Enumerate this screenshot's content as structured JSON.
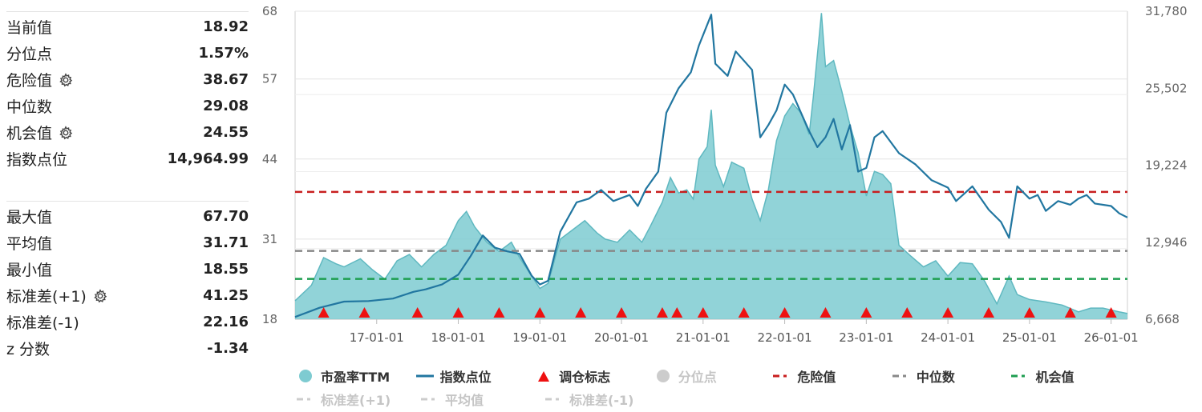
{
  "stats": {
    "group1": [
      {
        "label": "当前值",
        "value": "18.92",
        "gear": false
      },
      {
        "label": "分位点",
        "value": "1.57%",
        "gear": false
      },
      {
        "label": "危险值",
        "value": "38.67",
        "gear": true
      },
      {
        "label": "中位数",
        "value": "29.08",
        "gear": false
      },
      {
        "label": "机会值",
        "value": "24.55",
        "gear": true
      },
      {
        "label": "指数点位",
        "value": "14,964.99",
        "gear": false
      }
    ],
    "group2": [
      {
        "label": "最大值",
        "value": "67.70",
        "gear": false
      },
      {
        "label": "平均值",
        "value": "31.71",
        "gear": false
      },
      {
        "label": "最小值",
        "value": "18.55",
        "gear": false
      },
      {
        "label": "标准差(+1)",
        "value": "41.25",
        "gear": true
      },
      {
        "label": "标准差(-1)",
        "value": "22.16",
        "gear": false
      },
      {
        "label": "z 分数",
        "value": "-1.34",
        "gear": false
      }
    ]
  },
  "legend": [
    {
      "label": "市盈率TTM",
      "symbol": "circle",
      "color": "#7ecbd1",
      "active": true
    },
    {
      "label": "指数点位",
      "symbol": "line",
      "color": "#2176a0",
      "active": true
    },
    {
      "label": "调仓标志",
      "symbol": "triangle",
      "color": "#ee1111",
      "active": true
    },
    {
      "label": "分位点",
      "symbol": "circle",
      "color": "#cccccc",
      "active": false
    },
    {
      "label": "危险值",
      "symbol": "dash",
      "color": "#c81e1e",
      "active": true
    },
    {
      "label": "中位数",
      "symbol": "dash",
      "color": "#888888",
      "active": true
    },
    {
      "label": "机会值",
      "symbol": "dash",
      "color": "#1e9e50",
      "active": true
    },
    {
      "label": "标准差(+1)",
      "symbol": "dash",
      "color": "#cccccc",
      "active": false
    },
    {
      "label": "平均值",
      "symbol": "dash",
      "color": "#cccccc",
      "active": false
    },
    {
      "label": "标准差(-1)",
      "symbol": "dash",
      "color": "#cccccc",
      "active": false
    }
  ],
  "chart_data": {
    "type": "area",
    "left_axis": {
      "min": 18,
      "max": 68,
      "ticks": [
        "18",
        "31",
        "44",
        "57",
        "68"
      ]
    },
    "right_axis": {
      "min": 6668,
      "max": 31780,
      "ticks": [
        "6,668",
        "12,946",
        "19,224",
        "25,502",
        "31,780"
      ]
    },
    "x_range": [
      2016.0,
      2026.2
    ],
    "x_ticks": [
      {
        "x": 2017.0,
        "label": "17-01-01"
      },
      {
        "x": 2018.0,
        "label": "18-01-01"
      },
      {
        "x": 2019.0,
        "label": "19-01-01"
      },
      {
        "x": 2020.0,
        "label": "20-01-01"
      },
      {
        "x": 2021.0,
        "label": "21-01-01"
      },
      {
        "x": 2022.0,
        "label": "22-01-01"
      },
      {
        "x": 2023.0,
        "label": "23-01-01"
      },
      {
        "x": 2024.0,
        "label": "24-01-01"
      },
      {
        "x": 2025.0,
        "label": "25-01-01"
      },
      {
        "x": 2026.0,
        "label": "26-01-01"
      }
    ],
    "ref_lines": [
      {
        "name": "危险值",
        "value": 38.67,
        "color": "#c81e1e"
      },
      {
        "name": "中位数",
        "value": 29.08,
        "color": "#888888"
      },
      {
        "name": "机会值",
        "value": 24.55,
        "color": "#1e9e50"
      }
    ],
    "pe_series": {
      "name": "市盈率TTM",
      "color": "#7ecbd1",
      "points": [
        [
          2016.0,
          21
        ],
        [
          2016.2,
          23.5
        ],
        [
          2016.35,
          28
        ],
        [
          2016.5,
          27
        ],
        [
          2016.6,
          26.5
        ],
        [
          2016.8,
          27.8
        ],
        [
          2016.95,
          26
        ],
        [
          2017.1,
          24.5
        ],
        [
          2017.25,
          27.5
        ],
        [
          2017.4,
          28.5
        ],
        [
          2017.55,
          26.5
        ],
        [
          2017.7,
          28.5
        ],
        [
          2017.85,
          30
        ],
        [
          2018.0,
          34
        ],
        [
          2018.1,
          35.5
        ],
        [
          2018.2,
          33
        ],
        [
          2018.35,
          30.5
        ],
        [
          2018.5,
          29
        ],
        [
          2018.65,
          30.5
        ],
        [
          2018.75,
          28
        ],
        [
          2018.9,
          25
        ],
        [
          2019.0,
          23
        ],
        [
          2019.1,
          23.8
        ],
        [
          2019.25,
          31
        ],
        [
          2019.4,
          32.5
        ],
        [
          2019.55,
          34
        ],
        [
          2019.7,
          32
        ],
        [
          2019.8,
          31
        ],
        [
          2019.95,
          30.5
        ],
        [
          2020.1,
          32.5
        ],
        [
          2020.25,
          30.5
        ],
        [
          2020.35,
          33
        ],
        [
          2020.5,
          37
        ],
        [
          2020.6,
          41
        ],
        [
          2020.7,
          38.5
        ],
        [
          2020.8,
          39
        ],
        [
          2020.88,
          37.5
        ],
        [
          2020.95,
          44
        ],
        [
          2021.05,
          46
        ],
        [
          2021.1,
          52
        ],
        [
          2021.15,
          43
        ],
        [
          2021.25,
          39.5
        ],
        [
          2021.35,
          43.5
        ],
        [
          2021.5,
          42.5
        ],
        [
          2021.6,
          37.5
        ],
        [
          2021.7,
          34
        ],
        [
          2021.8,
          39
        ],
        [
          2021.9,
          47
        ],
        [
          2022.0,
          51
        ],
        [
          2022.1,
          53
        ],
        [
          2022.2,
          51.5
        ],
        [
          2022.3,
          48
        ],
        [
          2022.35,
          54
        ],
        [
          2022.45,
          67.7
        ],
        [
          2022.5,
          59
        ],
        [
          2022.6,
          60
        ],
        [
          2022.7,
          55
        ],
        [
          2022.8,
          49.5
        ],
        [
          2022.9,
          45
        ],
        [
          2023.0,
          38
        ],
        [
          2023.1,
          42
        ],
        [
          2023.2,
          41.5
        ],
        [
          2023.3,
          40
        ],
        [
          2023.4,
          30
        ],
        [
          2023.55,
          28.2
        ],
        [
          2023.7,
          26.5
        ],
        [
          2023.85,
          27.5
        ],
        [
          2024.0,
          25
        ],
        [
          2024.15,
          27.2
        ],
        [
          2024.3,
          27
        ],
        [
          2024.45,
          24.2
        ],
        [
          2024.6,
          20.5
        ],
        [
          2024.75,
          25
        ],
        [
          2024.85,
          22
        ],
        [
          2025.0,
          21.2
        ],
        [
          2025.2,
          20.8
        ],
        [
          2025.4,
          20.3
        ],
        [
          2025.6,
          19.2
        ],
        [
          2025.75,
          19.8
        ],
        [
          2025.9,
          19.8
        ],
        [
          2026.1,
          19.2
        ],
        [
          2026.2,
          18.92
        ]
      ]
    },
    "index_series": {
      "name": "指数点位",
      "color": "#2176a0",
      "points": [
        [
          2016.0,
          6850
        ],
        [
          2016.3,
          7600
        ],
        [
          2016.6,
          8100
        ],
        [
          2016.9,
          8150
        ],
        [
          2017.2,
          8350
        ],
        [
          2017.45,
          8900
        ],
        [
          2017.6,
          9100
        ],
        [
          2017.8,
          9500
        ],
        [
          2018.0,
          10300
        ],
        [
          2018.15,
          11800
        ],
        [
          2018.3,
          13500
        ],
        [
          2018.45,
          12500
        ],
        [
          2018.6,
          12200
        ],
        [
          2018.75,
          12000
        ],
        [
          2018.9,
          10200
        ],
        [
          2019.0,
          9500
        ],
        [
          2019.1,
          9800
        ],
        [
          2019.25,
          13800
        ],
        [
          2019.45,
          16200
        ],
        [
          2019.6,
          16500
        ],
        [
          2019.75,
          17200
        ],
        [
          2019.9,
          16300
        ],
        [
          2020.1,
          16800
        ],
        [
          2020.2,
          15900
        ],
        [
          2020.3,
          17300
        ],
        [
          2020.45,
          18700
        ],
        [
          2020.55,
          23500
        ],
        [
          2020.7,
          25500
        ],
        [
          2020.85,
          26800
        ],
        [
          2020.95,
          29000
        ],
        [
          2021.1,
          31500
        ],
        [
          2021.15,
          27500
        ],
        [
          2021.3,
          26500
        ],
        [
          2021.4,
          28500
        ],
        [
          2021.6,
          27000
        ],
        [
          2021.7,
          21500
        ],
        [
          2021.8,
          22500
        ],
        [
          2021.9,
          23700
        ],
        [
          2022.0,
          25800
        ],
        [
          2022.1,
          25000
        ],
        [
          2022.2,
          23500
        ],
        [
          2022.3,
          22000
        ],
        [
          2022.4,
          20700
        ],
        [
          2022.5,
          21500
        ],
        [
          2022.6,
          23000
        ],
        [
          2022.7,
          20500
        ],
        [
          2022.8,
          22500
        ],
        [
          2022.9,
          18700
        ],
        [
          2023.0,
          19000
        ],
        [
          2023.1,
          21500
        ],
        [
          2023.2,
          22000
        ],
        [
          2023.4,
          20200
        ],
        [
          2023.6,
          19300
        ],
        [
          2023.8,
          18000
        ],
        [
          2024.0,
          17400
        ],
        [
          2024.1,
          16300
        ],
        [
          2024.3,
          17500
        ],
        [
          2024.5,
          15600
        ],
        [
          2024.65,
          14600
        ],
        [
          2024.75,
          13300
        ],
        [
          2024.85,
          17500
        ],
        [
          2025.0,
          16500
        ],
        [
          2025.1,
          16800
        ],
        [
          2025.2,
          15500
        ],
        [
          2025.35,
          16300
        ],
        [
          2025.5,
          16000
        ],
        [
          2025.6,
          16500
        ],
        [
          2025.7,
          16800
        ],
        [
          2025.8,
          16100
        ],
        [
          2026.0,
          15900
        ],
        [
          2026.1,
          15300
        ],
        [
          2026.2,
          14965
        ]
      ]
    },
    "rebalance_markers": [
      2016.35,
      2016.85,
      2017.5,
      2018.0,
      2018.5,
      2019.0,
      2019.5,
      2020.0,
      2020.5,
      2020.68,
      2021.0,
      2021.5,
      2022.0,
      2022.5,
      2023.0,
      2023.5,
      2024.0,
      2024.5,
      2025.0,
      2025.5,
      2026.0
    ]
  }
}
